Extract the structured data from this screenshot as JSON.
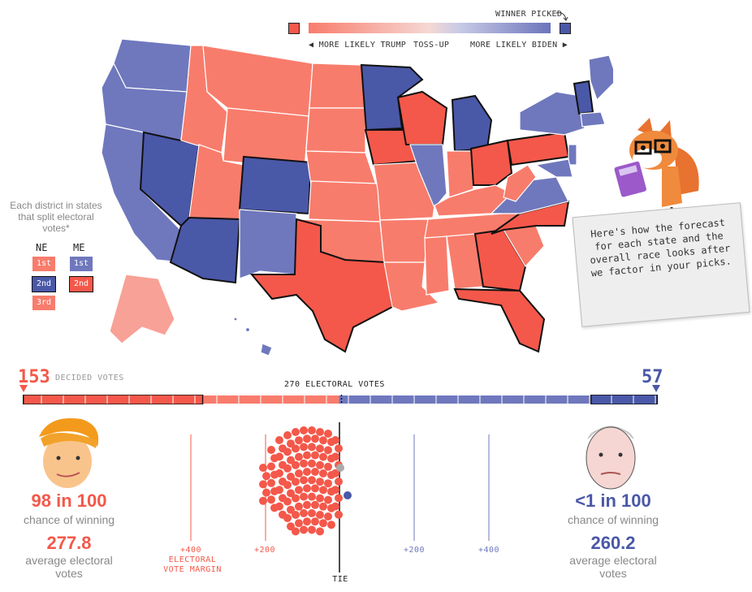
{
  "legend": {
    "winner_picked": "WINNER PICKED",
    "more_likely_trump": "◀ MORE LIKELY TRUMP",
    "toss_up": "TOSS-UP",
    "more_likely_biden": "MORE LIKELY BIDEN ▶"
  },
  "colors": {
    "trump_picked": "#f4584a",
    "trump_likely": "#f87c6c",
    "trump_lean": "#f8a196",
    "biden_picked": "#4a58a8",
    "biden_likely": "#6f78bd",
    "state_border_picked": "#111111"
  },
  "district_key": {
    "note": "Each district in states that split electoral votes*",
    "columns": [
      {
        "state": "NE",
        "districts": [
          {
            "label": "1st",
            "side": "trump-likely"
          },
          {
            "label": "2nd",
            "side": "biden-picked"
          },
          {
            "label": "3rd",
            "side": "trump-likely"
          }
        ]
      },
      {
        "state": "ME",
        "districts": [
          {
            "label": "1st",
            "side": "biden-likely"
          },
          {
            "label": "2nd",
            "side": "trump-picked"
          }
        ]
      }
    ]
  },
  "note_card": {
    "text": "Here's how the forecast for each state and the overall race looks after we factor in your picks."
  },
  "mascot": {
    "name": "fox-with-calculator"
  },
  "vote_bar": {
    "trump_decided": "153",
    "decided_label": "DECIDED VOTES",
    "biden_decided": "57",
    "threshold_label": "270 ELECTORAL VOTES",
    "total": 538,
    "trump_decided_votes": 153,
    "biden_decided_votes": 57,
    "trump_lean_votes": 115,
    "biden_lean_votes": 213
  },
  "trump": {
    "chance": "98 in 100",
    "chance_label": "chance of winning",
    "avg_ev": "277.8",
    "avg_ev_label": "average electoral votes"
  },
  "biden": {
    "chance": "<1 in 100",
    "chance_label": "chance of winning",
    "avg_ev": "260.2",
    "avg_ev_label": "average electoral votes"
  },
  "margin_axis": {
    "left_400": "+400",
    "title": "ELECTORAL VOTE MARGIN",
    "left_200": "+200",
    "right_200": "+200",
    "right_400": "+400",
    "tie": "TIE"
  }
}
